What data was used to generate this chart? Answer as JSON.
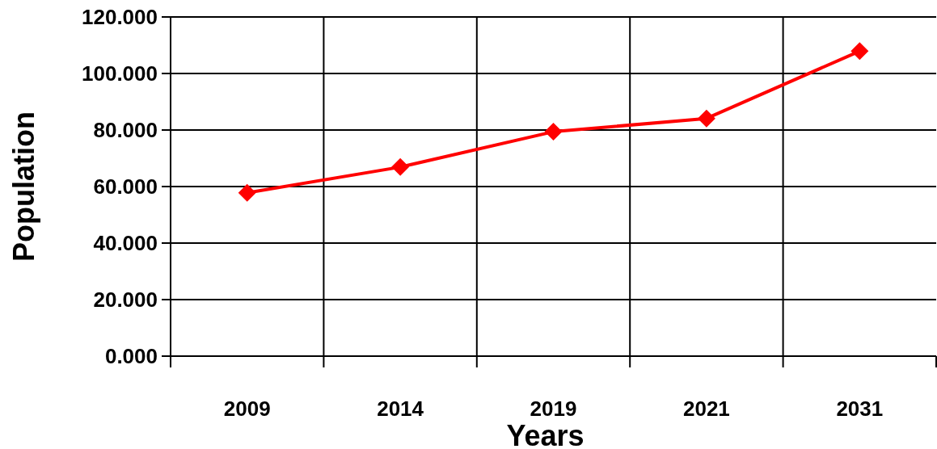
{
  "chart_data": {
    "type": "line",
    "xlabel": "Years",
    "ylabel": "Population",
    "categories": [
      "2009",
      "2014",
      "2019",
      "2021",
      "2031"
    ],
    "series": [
      {
        "color": "#ff0000",
        "values": [
          57.8,
          66.9,
          79.4,
          84.1,
          107.9
        ]
      }
    ],
    "ylim": [
      0,
      120
    ],
    "yticks": [
      {
        "value": 0,
        "label": "0.000"
      },
      {
        "value": 20,
        "label": "20.000"
      },
      {
        "value": 40,
        "label": "40.000"
      },
      {
        "value": 60,
        "label": "60.000"
      },
      {
        "value": 80,
        "label": "80.000"
      },
      {
        "value": 100,
        "label": "100.000"
      },
      {
        "value": 120,
        "label": "120.000"
      }
    ],
    "grid": true,
    "marker": "diamond",
    "line_style": "solid"
  }
}
